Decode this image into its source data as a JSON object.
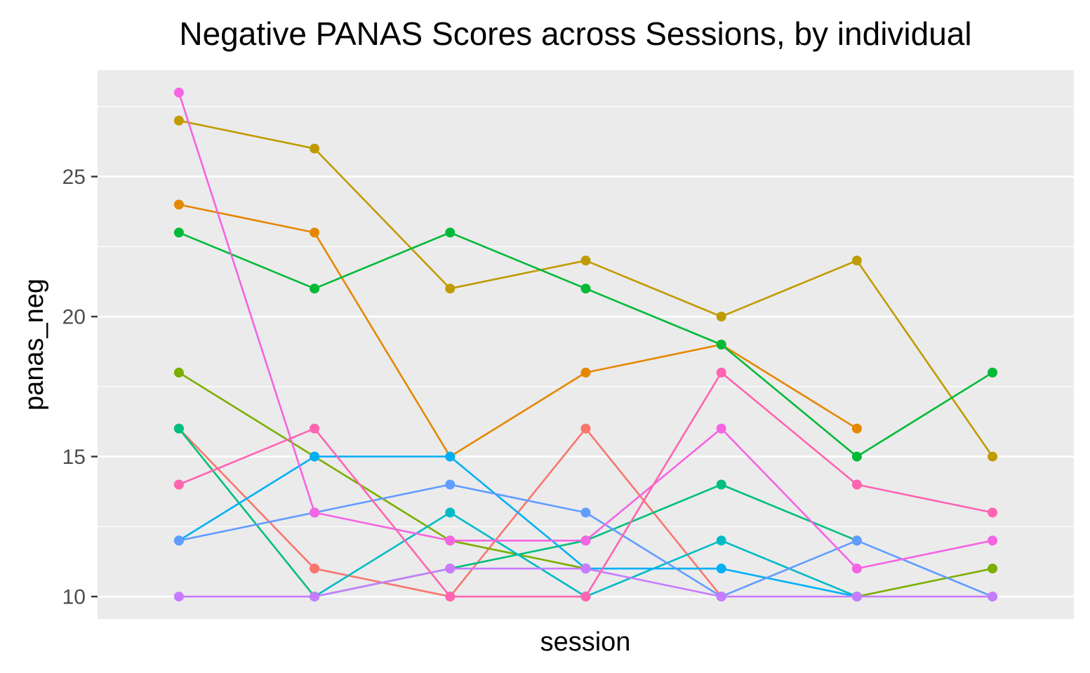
{
  "chart_data": {
    "type": "line",
    "title": "Negative PANAS Scores across Sessions, by individual",
    "xlabel": "session",
    "ylabel": "panas_neg",
    "x": [
      1,
      2,
      3,
      4,
      5,
      6,
      7
    ],
    "xlim": [
      0.4,
      7.6
    ],
    "ylim": [
      9.2,
      28.8
    ],
    "yticks": [
      10,
      15,
      20,
      25
    ],
    "ytick_labels": [
      "10",
      "15",
      "20",
      "25"
    ],
    "grid": true,
    "legend": "none",
    "colors": {
      "panel_background": "#ebebeb",
      "grid_line": "#ffffff",
      "tick_mark": "#333333"
    },
    "series": [
      {
        "color": "#F8766D",
        "values": [
          16,
          11,
          10,
          16,
          10,
          null,
          null
        ]
      },
      {
        "color": "#E58700",
        "values": [
          24,
          23,
          15,
          18,
          19,
          16,
          null
        ]
      },
      {
        "color": "#C09B00",
        "values": [
          27,
          26,
          21,
          22,
          20,
          22,
          15
        ]
      },
      {
        "color": "#7CAE00",
        "values": [
          18,
          15,
          12,
          11,
          null,
          10,
          11
        ]
      },
      {
        "color": "#00BA38",
        "values": [
          23,
          21,
          23,
          21,
          19,
          15,
          18
        ]
      },
      {
        "color": "#00BF7D",
        "values": [
          16,
          10,
          11,
          12,
          14,
          12,
          null
        ]
      },
      {
        "color": "#00BBC6",
        "values": [
          null,
          10,
          13,
          10,
          12,
          10,
          null
        ]
      },
      {
        "color": "#00B0F6",
        "values": [
          12,
          15,
          15,
          11,
          11,
          10,
          null
        ]
      },
      {
        "color": "#619CFF",
        "values": [
          12,
          13,
          14,
          13,
          10,
          12,
          10
        ]
      },
      {
        "color": "#C77CFF",
        "values": [
          10,
          10,
          11,
          11,
          10,
          10,
          10
        ]
      },
      {
        "color": "#F564E3",
        "values": [
          28,
          13,
          12,
          12,
          16,
          11,
          12
        ]
      },
      {
        "color": "#FF64B0",
        "values": [
          14,
          16,
          10,
          10,
          18,
          14,
          13
        ]
      }
    ]
  }
}
